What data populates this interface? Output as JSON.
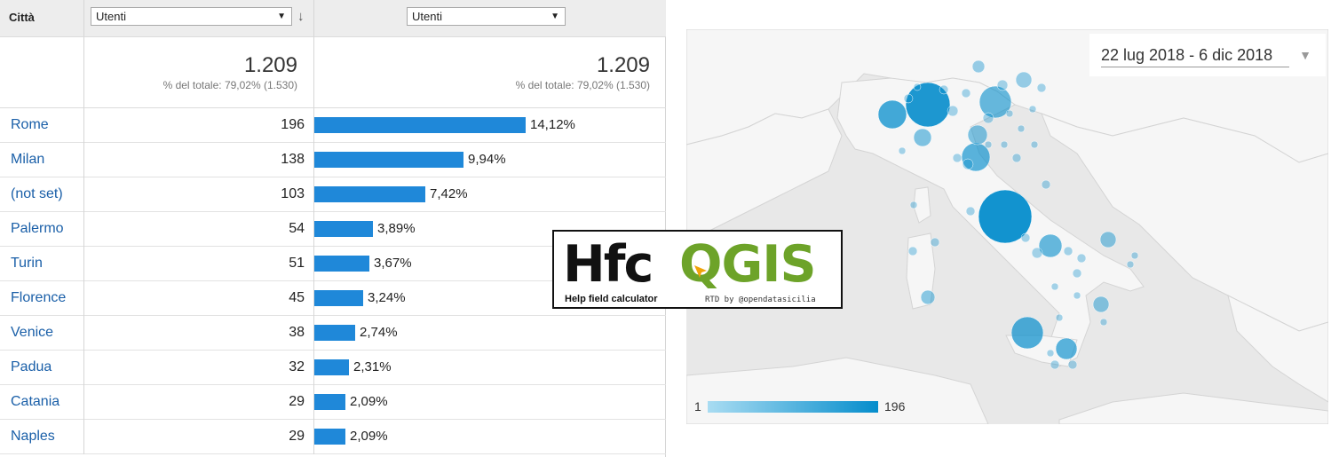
{
  "table": {
    "header": {
      "city_label": "Città",
      "metric1_select": "Utenti",
      "metric2_select": "Utenti",
      "sort_icon": "arrow-down-icon"
    },
    "totals": {
      "metric1_value": "1.209",
      "metric1_sub": "% del totale: 79,02% (1.530)",
      "metric2_value": "1.209",
      "metric2_sub": "% del totale: 79,02% (1.530)"
    },
    "rows": [
      {
        "city": "Rome",
        "value": "196",
        "pct": "14,12%",
        "share": 14.12
      },
      {
        "city": "Milan",
        "value": "138",
        "pct": "9,94%",
        "share": 9.94
      },
      {
        "city": "(not set)",
        "value": "103",
        "pct": "7,42%",
        "share": 7.42
      },
      {
        "city": "Palermo",
        "value": "54",
        "pct": "3,89%",
        "share": 3.89
      },
      {
        "city": "Turin",
        "value": "51",
        "pct": "3,67%",
        "share": 3.67
      },
      {
        "city": "Florence",
        "value": "45",
        "pct": "3,24%",
        "share": 3.24
      },
      {
        "city": "Venice",
        "value": "38",
        "pct": "2,74%",
        "share": 2.74
      },
      {
        "city": "Padua",
        "value": "32",
        "pct": "2,31%",
        "share": 2.31
      },
      {
        "city": "Catania",
        "value": "29",
        "pct": "2,09%",
        "share": 2.09
      },
      {
        "city": "Naples",
        "value": "29",
        "pct": "2,09%",
        "share": 2.09
      }
    ],
    "bar_color": "#1f88d9",
    "link_color": "#1a5fa8"
  },
  "map": {
    "date_range": "22 lug 2018 - 6 dic 2018",
    "legend_min": "1",
    "legend_max": "196",
    "bubble_color_low": "#a9dcf2",
    "bubble_color_high": "#058dcc",
    "land_color": "#f5f5f5",
    "sea_color": "#e8e8e8"
  },
  "logo": {
    "part1": "Hfc",
    "part2": "QGIS",
    "subtitle": "Help field calculator",
    "credit": "RTD by @opendatasicilia",
    "accent": "#6da329"
  }
}
